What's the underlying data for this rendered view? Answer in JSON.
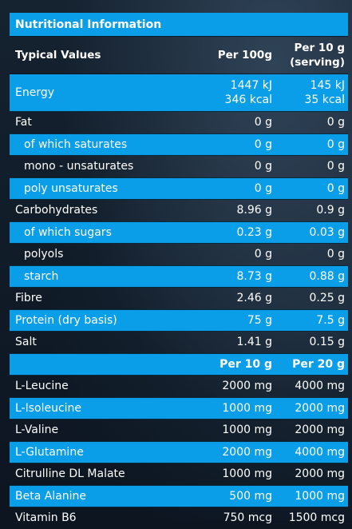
{
  "title": "Nutritional Information",
  "header": {
    "label": "Typical Values",
    "col1": "Per 100g",
    "col2_line1": "Per 10 g",
    "col2_line2": "(serving)"
  },
  "energy": {
    "label": "Energy",
    "v1_kj": "1447 kJ",
    "v1_kcal": "346 kcal",
    "v2_kj": "145 kJ",
    "v2_kcal": "35 kcal"
  },
  "rows": [
    {
      "label": "Fat",
      "v1": "0 g",
      "v2": "0 g"
    },
    {
      "label": "of which saturates",
      "v1": "0 g",
      "v2": "0 g"
    },
    {
      "label": "mono - unsaturates",
      "v1": "0 g",
      "v2": "0 g"
    },
    {
      "label": "poly unsaturates",
      "v1": "0 g",
      "v2": "0 g"
    },
    {
      "label": "Carbohydrates",
      "v1": "8.96 g",
      "v2": "0.9 g"
    },
    {
      "label": "of which sugars",
      "v1": "0.23 g",
      "v2": "0.03 g"
    },
    {
      "label": "polyols",
      "v1": "0 g",
      "v2": "0 g"
    },
    {
      "label": "starch",
      "v1": "8.73 g",
      "v2": "0.88 g"
    },
    {
      "label": "Fibre",
      "v1": "2.46 g",
      "v2": "0.25 g"
    },
    {
      "label": "Protein (dry basis)",
      "v1": "75 g",
      "v2": "7.5 g"
    },
    {
      "label": "Salt",
      "v1": "1.41 g",
      "v2": "0.15 g"
    }
  ],
  "amino_header": {
    "col1": "Per 10 g",
    "col2": "Per 20 g"
  },
  "amino_rows": [
    {
      "label": "L-Leucine",
      "v1": "2000 mg",
      "v2": "4000 mg"
    },
    {
      "label": "L-Isoleucine",
      "v1": "1000 mg",
      "v2": "2000 mg"
    },
    {
      "label": "L-Valine",
      "v1": "1000 mg",
      "v2": "2000 mg"
    },
    {
      "label": "L-Glutamine",
      "v1": "2000 mg",
      "v2": "4000 mg"
    },
    {
      "label": "Citrulline DL Malate",
      "v1": "1000 mg",
      "v2": "2000 mg"
    },
    {
      "label": "Beta Alanine",
      "v1": "500 mg",
      "v2": "1000 mg"
    },
    {
      "label": "Vitamin B6",
      "v1": "750 mcg",
      "v2": "1500 mcg"
    }
  ],
  "colors": {
    "accent": "#0a9ee8",
    "background": "#0d1620",
    "text": "#ffffff"
  }
}
